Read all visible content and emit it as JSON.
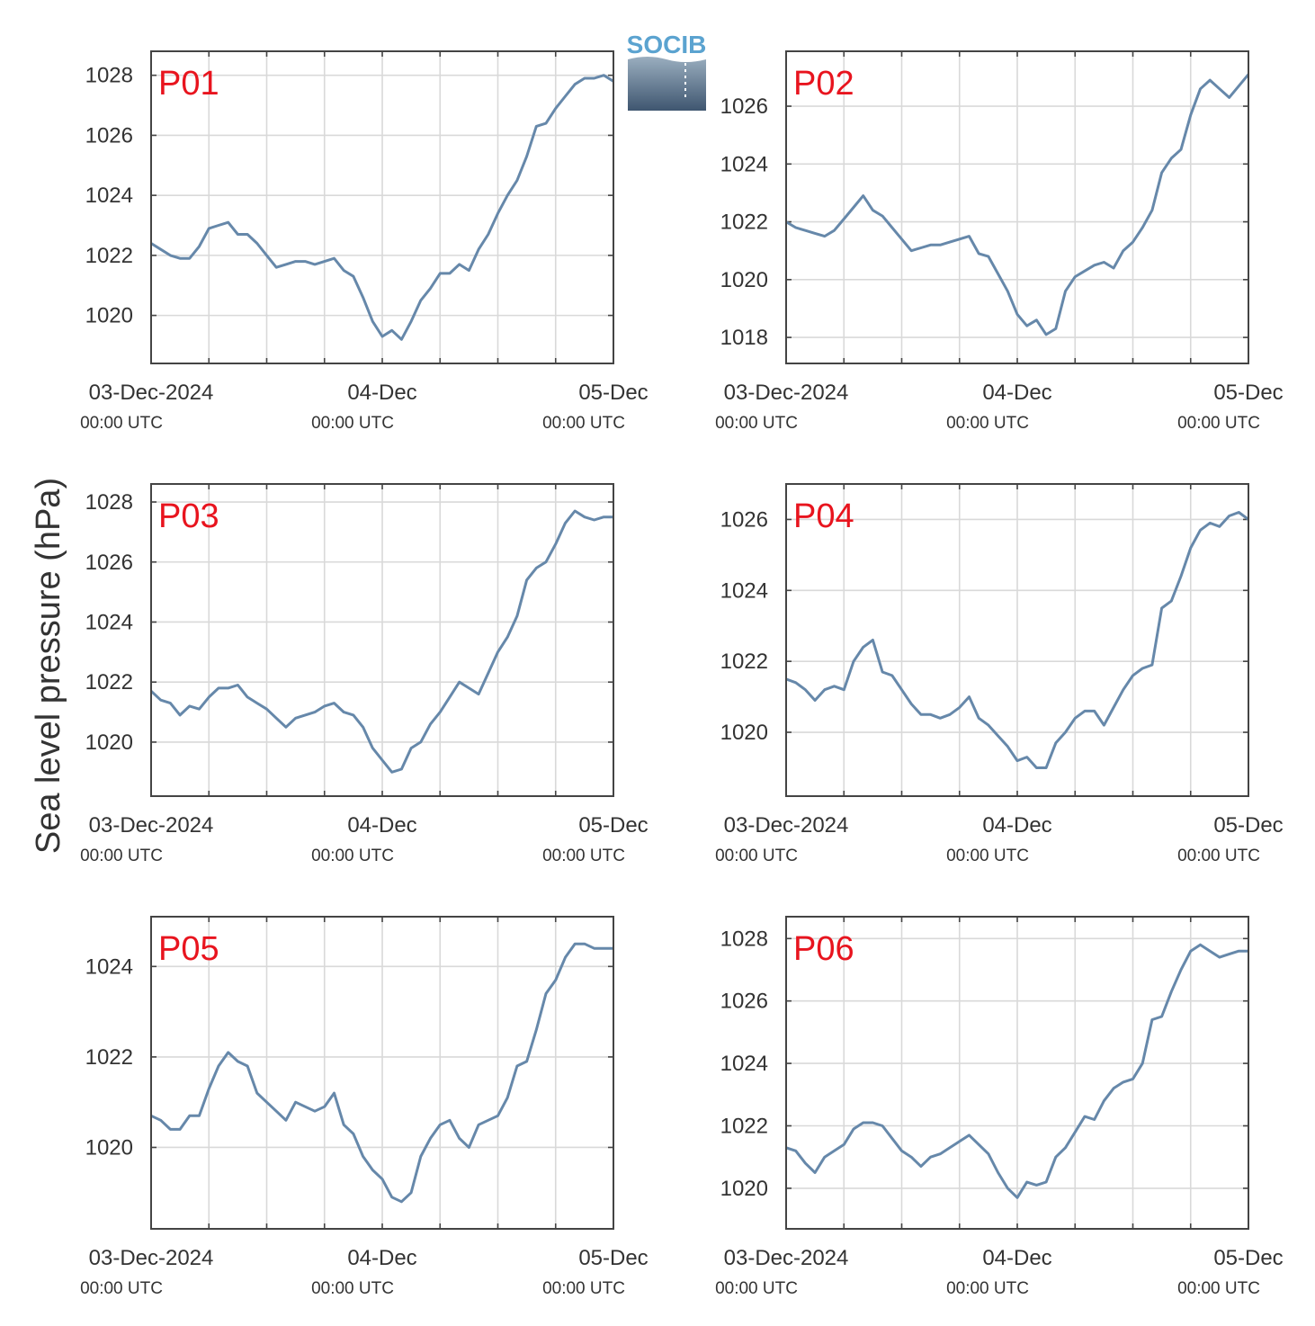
{
  "logo": {
    "text": "SOCIB",
    "text_color": "#5ba3d0",
    "gradient_top": "#9aaebf",
    "gradient_bottom": "#3f5670"
  },
  "ylabel": "Sea level pressure (hPa)",
  "x_ticks": [
    {
      "top": "03-Dec-2024",
      "bottom": "00:00 UTC"
    },
    {
      "top": "04-Dec",
      "bottom": "00:00 UTC"
    },
    {
      "top": "05-Dec",
      "bottom": "00:00 UTC"
    }
  ],
  "colors": {
    "line": "#6688aa",
    "label": "#e8141e",
    "grid": "#d9d9d9",
    "frame": "#444444"
  },
  "chart_data": [
    {
      "type": "line",
      "label": "P01",
      "x_range_hours": [
        0,
        48
      ],
      "ylim": [
        1018.4,
        1028.8
      ],
      "yticks": [
        1020,
        1022,
        1024,
        1026,
        1028
      ],
      "x": [
        0,
        1,
        2,
        3,
        4,
        5,
        6,
        7,
        8,
        9,
        10,
        11,
        12,
        13,
        14,
        15,
        16,
        17,
        18,
        19,
        20,
        21,
        22,
        23,
        24,
        25,
        26,
        27,
        28,
        29,
        30,
        31,
        32,
        33,
        34,
        35,
        36,
        37,
        38,
        39,
        40,
        41,
        42,
        43,
        44,
        45,
        46,
        47,
        48
      ],
      "y": [
        1022.4,
        1022.2,
        1022.0,
        1021.9,
        1021.9,
        1022.3,
        1022.9,
        1023.0,
        1023.1,
        1022.7,
        1022.7,
        1022.4,
        1022.0,
        1021.6,
        1021.7,
        1021.8,
        1021.8,
        1021.7,
        1021.8,
        1021.9,
        1021.5,
        1021.3,
        1020.6,
        1019.8,
        1019.3,
        1019.5,
        1019.2,
        1019.8,
        1020.5,
        1020.9,
        1021.4,
        1021.4,
        1021.7,
        1021.5,
        1022.2,
        1022.7,
        1023.4,
        1024.0,
        1024.5,
        1025.3,
        1026.3,
        1026.4,
        1026.9,
        1027.3,
        1027.7,
        1027.9,
        1027.9,
        1028.0,
        1027.8
      ]
    },
    {
      "type": "line",
      "label": "P02",
      "x_range_hours": [
        0,
        48
      ],
      "ylim": [
        1017.1,
        1027.9
      ],
      "yticks": [
        1018,
        1020,
        1022,
        1024,
        1026
      ],
      "x": [
        0,
        1,
        2,
        3,
        4,
        5,
        6,
        7,
        8,
        9,
        10,
        11,
        12,
        13,
        14,
        15,
        16,
        17,
        18,
        19,
        20,
        21,
        22,
        23,
        24,
        25,
        26,
        27,
        28,
        29,
        30,
        31,
        32,
        33,
        34,
        35,
        36,
        37,
        38,
        39,
        40,
        41,
        42,
        43,
        44,
        45,
        46,
        47,
        48
      ],
      "y": [
        1022.0,
        1021.8,
        1021.7,
        1021.6,
        1021.5,
        1021.7,
        1022.1,
        1022.5,
        1022.9,
        1022.4,
        1022.2,
        1021.8,
        1021.4,
        1021.0,
        1021.1,
        1021.2,
        1021.2,
        1021.3,
        1021.4,
        1021.5,
        1020.9,
        1020.8,
        1020.2,
        1019.6,
        1018.8,
        1018.4,
        1018.6,
        1018.1,
        1018.3,
        1019.6,
        1020.1,
        1020.3,
        1020.5,
        1020.6,
        1020.4,
        1021.0,
        1021.3,
        1021.8,
        1022.4,
        1023.7,
        1024.2,
        1024.5,
        1025.7,
        1026.6,
        1026.9,
        1026.6,
        1026.3,
        1026.7,
        1027.1
      ]
    },
    {
      "type": "line",
      "label": "P03",
      "x_range_hours": [
        0,
        48
      ],
      "ylim": [
        1018.2,
        1028.6
      ],
      "yticks": [
        1020,
        1022,
        1024,
        1026,
        1028
      ],
      "x": [
        0,
        1,
        2,
        3,
        4,
        5,
        6,
        7,
        8,
        9,
        10,
        11,
        12,
        13,
        14,
        15,
        16,
        17,
        18,
        19,
        20,
        21,
        22,
        23,
        24,
        25,
        26,
        27,
        28,
        29,
        30,
        31,
        32,
        33,
        34,
        35,
        36,
        37,
        38,
        39,
        40,
        41,
        42,
        43,
        44,
        45,
        46,
        47,
        48
      ],
      "y": [
        1021.7,
        1021.4,
        1021.3,
        1020.9,
        1021.2,
        1021.1,
        1021.5,
        1021.8,
        1021.8,
        1021.9,
        1021.5,
        1021.3,
        1021.1,
        1020.8,
        1020.5,
        1020.8,
        1020.9,
        1021.0,
        1021.2,
        1021.3,
        1021.0,
        1020.9,
        1020.5,
        1019.8,
        1019.4,
        1019.0,
        1019.1,
        1019.8,
        1020.0,
        1020.6,
        1021.0,
        1021.5,
        1022.0,
        1021.8,
        1021.6,
        1022.3,
        1023.0,
        1023.5,
        1024.2,
        1025.4,
        1025.8,
        1026.0,
        1026.6,
        1027.3,
        1027.7,
        1027.5,
        1027.4,
        1027.5,
        1027.5
      ]
    },
    {
      "type": "line",
      "label": "P04",
      "x_range_hours": [
        0,
        48
      ],
      "ylim": [
        1018.2,
        1027.0
      ],
      "yticks": [
        1020,
        1022,
        1024,
        1026
      ],
      "x": [
        0,
        1,
        2,
        3,
        4,
        5,
        6,
        7,
        8,
        9,
        10,
        11,
        12,
        13,
        14,
        15,
        16,
        17,
        18,
        19,
        20,
        21,
        22,
        23,
        24,
        25,
        26,
        27,
        28,
        29,
        30,
        31,
        32,
        33,
        34,
        35,
        36,
        37,
        38,
        39,
        40,
        41,
        42,
        43,
        44,
        45,
        46,
        47,
        48
      ],
      "y": [
        1021.5,
        1021.4,
        1021.2,
        1020.9,
        1021.2,
        1021.3,
        1021.2,
        1022.0,
        1022.4,
        1022.6,
        1021.7,
        1021.6,
        1021.2,
        1020.8,
        1020.5,
        1020.5,
        1020.4,
        1020.5,
        1020.7,
        1021.0,
        1020.4,
        1020.2,
        1019.9,
        1019.6,
        1019.2,
        1019.3,
        1019.0,
        1019.0,
        1019.7,
        1020.0,
        1020.4,
        1020.6,
        1020.6,
        1020.2,
        1020.7,
        1021.2,
        1021.6,
        1021.8,
        1021.9,
        1023.5,
        1023.7,
        1024.4,
        1025.2,
        1025.7,
        1025.9,
        1025.8,
        1026.1,
        1026.2,
        1026.0
      ]
    },
    {
      "type": "line",
      "label": "P05",
      "x_range_hours": [
        0,
        48
      ],
      "ylim": [
        1018.2,
        1025.1
      ],
      "yticks": [
        1020,
        1022,
        1024
      ],
      "x": [
        0,
        1,
        2,
        3,
        4,
        5,
        6,
        7,
        8,
        9,
        10,
        11,
        12,
        13,
        14,
        15,
        16,
        17,
        18,
        19,
        20,
        21,
        22,
        23,
        24,
        25,
        26,
        27,
        28,
        29,
        30,
        31,
        32,
        33,
        34,
        35,
        36,
        37,
        38,
        39,
        40,
        41,
        42,
        43,
        44,
        45,
        46,
        47,
        48
      ],
      "y": [
        1020.7,
        1020.6,
        1020.4,
        1020.4,
        1020.7,
        1020.7,
        1021.3,
        1021.8,
        1022.1,
        1021.9,
        1021.8,
        1021.2,
        1021.0,
        1020.8,
        1020.6,
        1021.0,
        1020.9,
        1020.8,
        1020.9,
        1021.2,
        1020.5,
        1020.3,
        1019.8,
        1019.5,
        1019.3,
        1018.9,
        1018.8,
        1019.0,
        1019.8,
        1020.2,
        1020.5,
        1020.6,
        1020.2,
        1020.0,
        1020.5,
        1020.6,
        1020.7,
        1021.1,
        1021.8,
        1021.9,
        1022.6,
        1023.4,
        1023.7,
        1024.2,
        1024.5,
        1024.5,
        1024.4,
        1024.4,
        1024.4
      ]
    },
    {
      "type": "line",
      "label": "P06",
      "x_range_hours": [
        0,
        48
      ],
      "ylim": [
        1018.7,
        1028.7
      ],
      "yticks": [
        1020,
        1022,
        1024,
        1026,
        1028
      ],
      "x": [
        0,
        1,
        2,
        3,
        4,
        5,
        6,
        7,
        8,
        9,
        10,
        11,
        12,
        13,
        14,
        15,
        16,
        17,
        18,
        19,
        20,
        21,
        22,
        23,
        24,
        25,
        26,
        27,
        28,
        29,
        30,
        31,
        32,
        33,
        34,
        35,
        36,
        37,
        38,
        39,
        40,
        41,
        42,
        43,
        44,
        45,
        46,
        47,
        48
      ],
      "y": [
        1021.3,
        1021.2,
        1020.8,
        1020.5,
        1021.0,
        1021.2,
        1021.4,
        1021.9,
        1022.1,
        1022.1,
        1022.0,
        1021.6,
        1021.2,
        1021.0,
        1020.7,
        1021.0,
        1021.1,
        1021.3,
        1021.5,
        1021.7,
        1021.4,
        1021.1,
        1020.5,
        1020.0,
        1019.7,
        1020.2,
        1020.1,
        1020.2,
        1021.0,
        1021.3,
        1021.8,
        1022.3,
        1022.2,
        1022.8,
        1023.2,
        1023.4,
        1023.5,
        1024.0,
        1025.4,
        1025.5,
        1026.3,
        1027.0,
        1027.6,
        1027.8,
        1027.6,
        1027.4,
        1027.5,
        1027.6,
        1027.6
      ]
    }
  ]
}
